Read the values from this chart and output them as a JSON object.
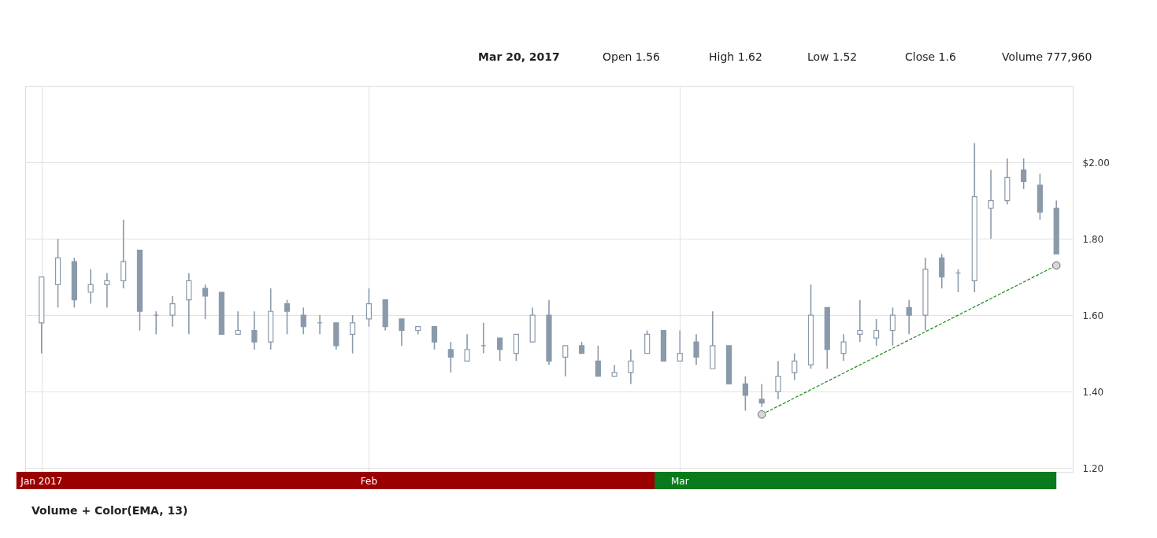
{
  "chart_data": {
    "type": "candlestick",
    "annotations": [
      "Mar 20, 2017",
      "Open 1.56",
      "High 1.62",
      "Low 1.52",
      "Close 1.6",
      "Volume 777,960",
      "Volume + Color(EMA, 13)"
    ],
    "categories": [
      "Jan 2017",
      null,
      null,
      null,
      null,
      null,
      null,
      null,
      null,
      null,
      null,
      null,
      null,
      null,
      null,
      null,
      null,
      null,
      null,
      null,
      "Feb",
      null,
      null,
      null,
      null,
      null,
      null,
      null,
      null,
      null,
      null,
      null,
      null,
      null,
      null,
      null,
      null,
      null,
      null,
      "Mar",
      null,
      null,
      null,
      null,
      null,
      null,
      null,
      null,
      null,
      null,
      null,
      null,
      null,
      null,
      null,
      null,
      null,
      null,
      null,
      null,
      null,
      null,
      null
    ],
    "series": [
      {
        "color": "#8a9aaa",
        "ohlc": [
          [
            1.58,
            1.7,
            1.5,
            1.7
          ],
          [
            1.68,
            1.8,
            1.62,
            1.75
          ],
          [
            1.74,
            1.75,
            1.62,
            1.64
          ],
          [
            1.66,
            1.72,
            1.63,
            1.68
          ],
          [
            1.68,
            1.71,
            1.62,
            1.69
          ],
          [
            1.69,
            1.85,
            1.67,
            1.74
          ],
          [
            1.77,
            1.77,
            1.56,
            1.61
          ],
          [
            1.6,
            1.61,
            1.55,
            1.6
          ],
          [
            1.6,
            1.65,
            1.57,
            1.63
          ],
          [
            1.64,
            1.71,
            1.55,
            1.69
          ],
          [
            1.67,
            1.68,
            1.59,
            1.65
          ],
          [
            1.66,
            1.66,
            1.55,
            1.55
          ],
          [
            1.55,
            1.61,
            1.55,
            1.56
          ],
          [
            1.56,
            1.61,
            1.51,
            1.53
          ],
          [
            1.53,
            1.67,
            1.51,
            1.61
          ],
          [
            1.63,
            1.64,
            1.55,
            1.61
          ],
          [
            1.6,
            1.62,
            1.55,
            1.57
          ],
          [
            1.58,
            1.6,
            1.55,
            1.58
          ],
          [
            1.58,
            1.58,
            1.51,
            1.52
          ],
          [
            1.55,
            1.6,
            1.5,
            1.58
          ],
          [
            1.59,
            1.67,
            1.57,
            1.63
          ],
          [
            1.64,
            1.64,
            1.56,
            1.57
          ],
          [
            1.59,
            1.59,
            1.52,
            1.56
          ],
          [
            1.56,
            1.57,
            1.55,
            1.57
          ],
          [
            1.57,
            1.57,
            1.51,
            1.53
          ],
          [
            1.51,
            1.53,
            1.45,
            1.49
          ],
          [
            1.48,
            1.55,
            1.48,
            1.51
          ],
          [
            1.52,
            1.58,
            1.5,
            1.52
          ],
          [
            1.54,
            1.54,
            1.48,
            1.51
          ],
          [
            1.5,
            1.55,
            1.48,
            1.55
          ],
          [
            1.53,
            1.62,
            1.53,
            1.6
          ],
          [
            1.6,
            1.64,
            1.47,
            1.48
          ],
          [
            1.49,
            1.52,
            1.44,
            1.52
          ],
          [
            1.52,
            1.53,
            1.5,
            1.5
          ],
          [
            1.48,
            1.52,
            1.44,
            1.44
          ],
          [
            1.44,
            1.47,
            1.44,
            1.45
          ],
          [
            1.45,
            1.51,
            1.42,
            1.48
          ],
          [
            1.5,
            1.56,
            1.5,
            1.55
          ],
          [
            1.56,
            1.56,
            1.48,
            1.48
          ],
          [
            1.48,
            1.56,
            1.48,
            1.5
          ],
          [
            1.53,
            1.55,
            1.47,
            1.49
          ],
          [
            1.46,
            1.61,
            1.46,
            1.52
          ],
          [
            1.52,
            1.52,
            1.42,
            1.42
          ],
          [
            1.42,
            1.44,
            1.35,
            1.39
          ],
          [
            1.38,
            1.42,
            1.36,
            1.37
          ],
          [
            1.4,
            1.48,
            1.38,
            1.44
          ],
          [
            1.45,
            1.5,
            1.43,
            1.48
          ],
          [
            1.47,
            1.68,
            1.46,
            1.6
          ],
          [
            1.62,
            1.62,
            1.46,
            1.51
          ],
          [
            1.5,
            1.55,
            1.48,
            1.53
          ],
          [
            1.55,
            1.64,
            1.53,
            1.56
          ],
          [
            1.54,
            1.59,
            1.52,
            1.56
          ],
          [
            1.56,
            1.62,
            1.52,
            1.6
          ],
          [
            1.62,
            1.64,
            1.55,
            1.6
          ],
          [
            1.6,
            1.75,
            1.56,
            1.72
          ],
          [
            1.75,
            1.76,
            1.67,
            1.7
          ],
          [
            1.71,
            1.72,
            1.66,
            1.71
          ],
          [
            1.69,
            2.05,
            1.66,
            1.91
          ],
          [
            1.88,
            1.98,
            1.8,
            1.9
          ],
          [
            1.9,
            2.01,
            1.89,
            1.96
          ],
          [
            1.98,
            2.01,
            1.93,
            1.95
          ],
          [
            1.94,
            1.97,
            1.85,
            1.87
          ],
          [
            1.88,
            1.9,
            1.76,
            1.76
          ]
        ]
      },
      {
        "type": "line",
        "color": "#1a8a1a",
        "values": [
          null,
          null,
          null,
          null,
          null,
          null,
          null,
          null,
          null,
          null,
          null,
          null,
          null,
          null,
          null,
          null,
          null,
          null,
          null,
          null,
          null,
          null,
          null,
          null,
          null,
          null,
          null,
          null,
          null,
          null,
          null,
          null,
          null,
          null,
          null,
          null,
          null,
          null,
          null,
          null,
          null,
          null,
          null,
          null,
          1.34,
          null,
          null,
          null,
          null,
          null,
          null,
          null,
          null,
          null,
          null,
          null,
          null,
          null,
          null,
          null,
          null,
          null,
          1.73
        ],
        "marker": "circle",
        "line_style": "dashed"
      }
    ],
    "ylim": [
      1.19,
      2.2
    ],
    "yticks": [
      {
        "value": 1.2,
        "label": "1.20"
      },
      {
        "value": 1.4,
        "label": "1.40"
      },
      {
        "value": 1.6,
        "label": "1.60"
      },
      {
        "value": 1.8,
        "label": "1.80"
      },
      {
        "value": 2.0,
        "label": "$2.00"
      }
    ],
    "grid": true
  }
}
